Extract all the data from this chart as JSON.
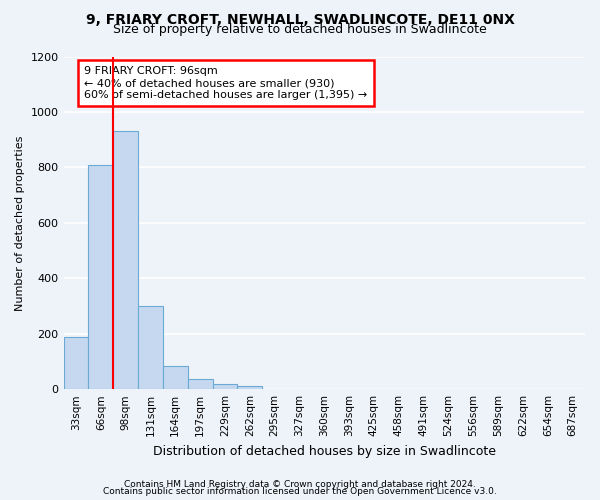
{
  "title": "9, FRIARY CROFT, NEWHALL, SWADLINCOTE, DE11 0NX",
  "subtitle": "Size of property relative to detached houses in Swadlincote",
  "xlabel": "Distribution of detached houses by size in Swadlincote",
  "ylabel": "Number of detached properties",
  "footer1": "Contains HM Land Registry data © Crown copyright and database right 2024.",
  "footer2": "Contains public sector information licensed under the Open Government Licence v3.0.",
  "bar_labels": [
    "33sqm",
    "66sqm",
    "98sqm",
    "131sqm",
    "164sqm",
    "197sqm",
    "229sqm",
    "262sqm",
    "295sqm",
    "327sqm",
    "360sqm",
    "393sqm",
    "425sqm",
    "458sqm",
    "491sqm",
    "524sqm",
    "556sqm",
    "589sqm",
    "622sqm",
    "654sqm",
    "687sqm"
  ],
  "bar_values": [
    190,
    810,
    930,
    300,
    85,
    35,
    20,
    12,
    0,
    0,
    0,
    0,
    0,
    0,
    0,
    0,
    0,
    0,
    0,
    0,
    0
  ],
  "bar_color": "#c5d8f0",
  "bar_edge_color": "#6aaad4",
  "ylim": [
    0,
    1200
  ],
  "yticks": [
    0,
    200,
    400,
    600,
    800,
    1000,
    1200
  ],
  "red_line_x": 1.5,
  "annotation_title": "9 FRIARY CROFT: 96sqm",
  "annotation_line1": "← 40% of detached houses are smaller (930)",
  "annotation_line2": "60% of semi-detached houses are larger (1,395) →",
  "bg_color": "#eef2f9",
  "grid_color": "#ffffff",
  "title_fontsize": 10,
  "subtitle_fontsize": 9,
  "annot_fontsize": 8,
  "ylabel_fontsize": 8,
  "xlabel_fontsize": 9,
  "tick_fontsize": 8,
  "xtick_fontsize": 7.5
}
